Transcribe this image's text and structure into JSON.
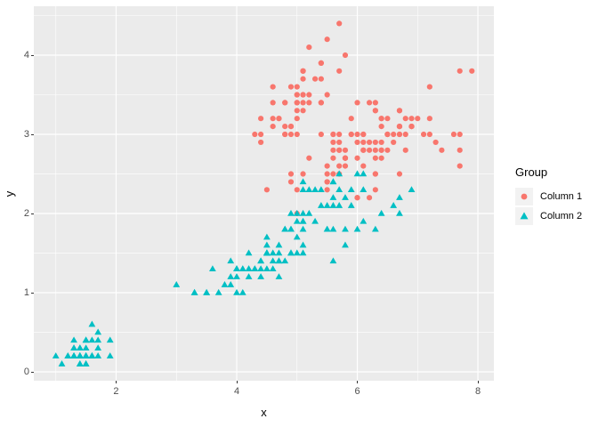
{
  "chart_data": {
    "type": "scatter",
    "title": "",
    "xlabel": "x",
    "ylabel": "y",
    "xlim": [
      0.635,
      8.265
    ],
    "ylim": [
      -0.112,
      4.618
    ],
    "x_ticks": [
      2,
      4,
      6,
      8
    ],
    "y_ticks": [
      0,
      1,
      2,
      3,
      4
    ],
    "x_minor_ticks": [
      1,
      3,
      5,
      7
    ],
    "y_minor_ticks": [
      0.5,
      1.5,
      2.5,
      3.5,
      4.5
    ],
    "grid": true,
    "colors": {
      "panel_bg": "#EBEBEB",
      "grid_line": "#FFFFFF",
      "tick_text": "#4D4D4D",
      "axis_title": "#000000",
      "legend_key_bg": "#F2F2F2"
    },
    "legend": {
      "title": "Group",
      "position": "right",
      "entries": [
        {
          "label": "Column 1",
          "marker": "circle",
          "color": "#F8766D"
        },
        {
          "label": "Column 2",
          "marker": "triangle",
          "color": "#00BFC4"
        }
      ]
    },
    "series": [
      {
        "name": "Column 1",
        "marker": "circle",
        "color": "#F8766D",
        "points": [
          [
            5.1,
            3.5
          ],
          [
            4.9,
            3.0
          ],
          [
            4.7,
            3.2
          ],
          [
            4.6,
            3.1
          ],
          [
            5.0,
            3.6
          ],
          [
            5.4,
            3.9
          ],
          [
            4.6,
            3.4
          ],
          [
            5.0,
            3.4
          ],
          [
            4.4,
            2.9
          ],
          [
            4.9,
            3.1
          ],
          [
            5.4,
            3.7
          ],
          [
            4.8,
            3.4
          ],
          [
            4.8,
            3.0
          ],
          [
            4.3,
            3.0
          ],
          [
            5.8,
            4.0
          ],
          [
            5.7,
            4.4
          ],
          [
            5.4,
            3.9
          ],
          [
            5.1,
            3.5
          ],
          [
            5.7,
            3.8
          ],
          [
            5.1,
            3.8
          ],
          [
            5.4,
            3.4
          ],
          [
            5.1,
            3.7
          ],
          [
            4.6,
            3.6
          ],
          [
            5.1,
            3.3
          ],
          [
            4.8,
            3.4
          ],
          [
            5.0,
            3.0
          ],
          [
            5.0,
            3.4
          ],
          [
            5.2,
            3.5
          ],
          [
            5.2,
            3.4
          ],
          [
            4.7,
            3.2
          ],
          [
            4.8,
            3.1
          ],
          [
            5.4,
            3.4
          ],
          [
            5.2,
            4.1
          ],
          [
            5.5,
            4.2
          ],
          [
            4.9,
            3.1
          ],
          [
            5.0,
            3.2
          ],
          [
            5.5,
            3.5
          ],
          [
            4.9,
            3.6
          ],
          [
            4.4,
            3.0
          ],
          [
            5.1,
            3.4
          ],
          [
            5.0,
            3.5
          ],
          [
            4.5,
            2.3
          ],
          [
            4.4,
            3.2
          ],
          [
            5.0,
            3.5
          ],
          [
            5.1,
            3.8
          ],
          [
            4.8,
            3.0
          ],
          [
            5.1,
            3.8
          ],
          [
            4.6,
            3.2
          ],
          [
            5.3,
            3.7
          ],
          [
            5.0,
            3.3
          ],
          [
            7.0,
            3.2
          ],
          [
            6.4,
            3.2
          ],
          [
            6.9,
            3.1
          ],
          [
            5.5,
            2.3
          ],
          [
            6.5,
            2.8
          ],
          [
            5.7,
            2.8
          ],
          [
            6.3,
            3.3
          ],
          [
            4.9,
            2.4
          ],
          [
            6.6,
            2.9
          ],
          [
            5.2,
            2.7
          ],
          [
            5.0,
            2.0
          ],
          [
            5.9,
            3.0
          ],
          [
            6.0,
            2.2
          ],
          [
            6.1,
            2.9
          ],
          [
            5.6,
            2.9
          ],
          [
            6.7,
            3.1
          ],
          [
            5.6,
            3.0
          ],
          [
            5.8,
            2.7
          ],
          [
            6.2,
            2.2
          ],
          [
            5.6,
            2.5
          ],
          [
            5.9,
            3.2
          ],
          [
            6.1,
            2.8
          ],
          [
            6.3,
            2.5
          ],
          [
            6.1,
            2.8
          ],
          [
            6.4,
            2.9
          ],
          [
            6.6,
            3.0
          ],
          [
            6.8,
            2.8
          ],
          [
            6.7,
            3.0
          ],
          [
            6.0,
            2.9
          ],
          [
            5.7,
            2.6
          ],
          [
            5.5,
            2.4
          ],
          [
            5.5,
            2.4
          ],
          [
            5.8,
            2.7
          ],
          [
            6.0,
            2.7
          ],
          [
            5.4,
            3.0
          ],
          [
            6.0,
            3.4
          ],
          [
            6.7,
            3.1
          ],
          [
            6.3,
            2.3
          ],
          [
            5.6,
            3.0
          ],
          [
            5.5,
            2.5
          ],
          [
            5.5,
            2.6
          ],
          [
            6.1,
            3.0
          ],
          [
            5.8,
            2.6
          ],
          [
            5.0,
            2.3
          ],
          [
            5.6,
            2.7
          ],
          [
            5.7,
            3.0
          ],
          [
            5.7,
            2.9
          ],
          [
            6.2,
            2.9
          ],
          [
            5.1,
            2.5
          ],
          [
            5.7,
            2.8
          ],
          [
            6.3,
            3.3
          ],
          [
            5.8,
            2.7
          ],
          [
            7.1,
            3.0
          ],
          [
            6.3,
            2.9
          ],
          [
            6.5,
            3.0
          ],
          [
            7.6,
            3.0
          ],
          [
            4.9,
            2.5
          ],
          [
            7.3,
            2.9
          ],
          [
            6.7,
            2.5
          ],
          [
            7.2,
            3.6
          ],
          [
            6.5,
            3.2
          ],
          [
            6.4,
            2.7
          ],
          [
            6.8,
            3.0
          ],
          [
            5.7,
            2.5
          ],
          [
            5.8,
            2.8
          ],
          [
            6.4,
            3.2
          ],
          [
            6.5,
            3.0
          ],
          [
            7.7,
            3.8
          ],
          [
            7.7,
            2.6
          ],
          [
            6.0,
            2.2
          ],
          [
            6.9,
            3.2
          ],
          [
            5.6,
            2.8
          ],
          [
            7.7,
            2.8
          ],
          [
            6.3,
            2.7
          ],
          [
            6.7,
            3.3
          ],
          [
            7.2,
            3.2
          ],
          [
            6.2,
            2.8
          ],
          [
            6.1,
            3.0
          ],
          [
            6.4,
            2.8
          ],
          [
            7.2,
            3.0
          ],
          [
            7.4,
            2.8
          ],
          [
            7.9,
            3.8
          ],
          [
            6.4,
            2.8
          ],
          [
            6.3,
            2.8
          ],
          [
            6.1,
            2.6
          ],
          [
            7.7,
            3.0
          ],
          [
            6.3,
            3.4
          ],
          [
            6.4,
            3.1
          ],
          [
            6.0,
            3.0
          ],
          [
            6.9,
            3.1
          ],
          [
            6.7,
            3.1
          ],
          [
            6.9,
            3.1
          ],
          [
            5.8,
            2.7
          ],
          [
            6.8,
            3.2
          ],
          [
            6.7,
            3.3
          ],
          [
            6.7,
            3.0
          ],
          [
            6.3,
            2.5
          ],
          [
            6.5,
            3.0
          ],
          [
            6.2,
            3.4
          ],
          [
            5.9,
            3.0
          ]
        ]
      },
      {
        "name": "Column 2",
        "marker": "triangle",
        "color": "#00BFC4",
        "points": [
          [
            1.4,
            0.2
          ],
          [
            1.4,
            0.2
          ],
          [
            1.3,
            0.2
          ],
          [
            1.5,
            0.2
          ],
          [
            1.4,
            0.2
          ],
          [
            1.7,
            0.4
          ],
          [
            1.4,
            0.3
          ],
          [
            1.5,
            0.2
          ],
          [
            1.4,
            0.2
          ],
          [
            1.5,
            0.1
          ],
          [
            1.5,
            0.2
          ],
          [
            1.6,
            0.2
          ],
          [
            1.4,
            0.1
          ],
          [
            1.1,
            0.1
          ],
          [
            1.2,
            0.2
          ],
          [
            1.5,
            0.4
          ],
          [
            1.3,
            0.4
          ],
          [
            1.4,
            0.3
          ],
          [
            1.7,
            0.3
          ],
          [
            1.5,
            0.3
          ],
          [
            1.7,
            0.2
          ],
          [
            1.5,
            0.4
          ],
          [
            1.0,
            0.2
          ],
          [
            1.7,
            0.5
          ],
          [
            1.9,
            0.2
          ],
          [
            1.6,
            0.2
          ],
          [
            1.6,
            0.4
          ],
          [
            1.5,
            0.2
          ],
          [
            1.4,
            0.2
          ],
          [
            1.6,
            0.2
          ],
          [
            1.6,
            0.2
          ],
          [
            1.5,
            0.4
          ],
          [
            1.5,
            0.1
          ],
          [
            1.4,
            0.2
          ],
          [
            1.5,
            0.2
          ],
          [
            1.2,
            0.2
          ],
          [
            1.3,
            0.2
          ],
          [
            1.4,
            0.1
          ],
          [
            1.3,
            0.2
          ],
          [
            1.5,
            0.2
          ],
          [
            1.3,
            0.3
          ],
          [
            1.3,
            0.3
          ],
          [
            1.3,
            0.2
          ],
          [
            1.6,
            0.6
          ],
          [
            1.9,
            0.4
          ],
          [
            1.4,
            0.3
          ],
          [
            1.6,
            0.2
          ],
          [
            1.4,
            0.2
          ],
          [
            1.5,
            0.2
          ],
          [
            1.4,
            0.2
          ],
          [
            4.7,
            1.4
          ],
          [
            4.5,
            1.5
          ],
          [
            4.9,
            1.5
          ],
          [
            4.0,
            1.3
          ],
          [
            4.6,
            1.5
          ],
          [
            4.5,
            1.3
          ],
          [
            4.7,
            1.6
          ],
          [
            3.3,
            1.0
          ],
          [
            4.6,
            1.3
          ],
          [
            3.9,
            1.4
          ],
          [
            3.5,
            1.0
          ],
          [
            4.2,
            1.5
          ],
          [
            4.0,
            1.0
          ],
          [
            4.7,
            1.4
          ],
          [
            3.6,
            1.3
          ],
          [
            4.4,
            1.4
          ],
          [
            4.5,
            1.5
          ],
          [
            4.1,
            1.0
          ],
          [
            4.5,
            1.5
          ],
          [
            3.9,
            1.1
          ],
          [
            4.8,
            1.8
          ],
          [
            4.0,
            1.3
          ],
          [
            4.9,
            1.5
          ],
          [
            4.7,
            1.2
          ],
          [
            4.3,
            1.3
          ],
          [
            4.4,
            1.4
          ],
          [
            4.8,
            1.4
          ],
          [
            5.0,
            1.7
          ],
          [
            4.5,
            1.5
          ],
          [
            3.5,
            1.0
          ],
          [
            3.8,
            1.1
          ],
          [
            3.7,
            1.0
          ],
          [
            3.9,
            1.2
          ],
          [
            5.1,
            1.6
          ],
          [
            4.5,
            1.5
          ],
          [
            4.5,
            1.6
          ],
          [
            4.7,
            1.5
          ],
          [
            4.4,
            1.3
          ],
          [
            4.1,
            1.3
          ],
          [
            4.0,
            1.3
          ],
          [
            4.4,
            1.2
          ],
          [
            4.6,
            1.4
          ],
          [
            4.0,
            1.2
          ],
          [
            3.3,
            1.0
          ],
          [
            4.2,
            1.3
          ],
          [
            4.2,
            1.2
          ],
          [
            4.2,
            1.3
          ],
          [
            4.3,
            1.3
          ],
          [
            3.0,
            1.1
          ],
          [
            4.1,
            1.3
          ],
          [
            6.0,
            2.5
          ],
          [
            5.1,
            1.9
          ],
          [
            5.9,
            2.1
          ],
          [
            5.6,
            1.8
          ],
          [
            5.8,
            2.2
          ],
          [
            6.6,
            2.1
          ],
          [
            4.5,
            1.7
          ],
          [
            6.3,
            1.8
          ],
          [
            5.8,
            1.8
          ],
          [
            6.1,
            2.5
          ],
          [
            5.1,
            2.0
          ],
          [
            5.3,
            1.9
          ],
          [
            5.5,
            2.1
          ],
          [
            5.0,
            2.0
          ],
          [
            5.1,
            2.4
          ],
          [
            5.3,
            2.3
          ],
          [
            5.5,
            1.8
          ],
          [
            6.7,
            2.2
          ],
          [
            6.9,
            2.3
          ],
          [
            5.0,
            1.5
          ],
          [
            5.7,
            2.3
          ],
          [
            4.9,
            2.0
          ],
          [
            6.7,
            2.0
          ],
          [
            4.9,
            1.8
          ],
          [
            5.7,
            2.1
          ],
          [
            6.0,
            1.8
          ],
          [
            4.8,
            1.8
          ],
          [
            4.9,
            1.8
          ],
          [
            5.6,
            2.1
          ],
          [
            5.8,
            1.6
          ],
          [
            6.1,
            1.9
          ],
          [
            6.4,
            2.0
          ],
          [
            5.6,
            2.2
          ],
          [
            5.1,
            1.5
          ],
          [
            5.6,
            1.4
          ],
          [
            6.1,
            2.3
          ],
          [
            5.6,
            2.4
          ],
          [
            5.5,
            1.8
          ],
          [
            4.8,
            1.8
          ],
          [
            5.4,
            2.1
          ],
          [
            5.6,
            2.4
          ],
          [
            5.1,
            2.3
          ],
          [
            5.1,
            1.9
          ],
          [
            5.9,
            2.3
          ],
          [
            5.7,
            2.5
          ],
          [
            5.2,
            2.3
          ],
          [
            5.0,
            1.9
          ],
          [
            5.2,
            2.0
          ],
          [
            5.4,
            2.3
          ],
          [
            5.1,
            1.8
          ]
        ]
      }
    ]
  }
}
